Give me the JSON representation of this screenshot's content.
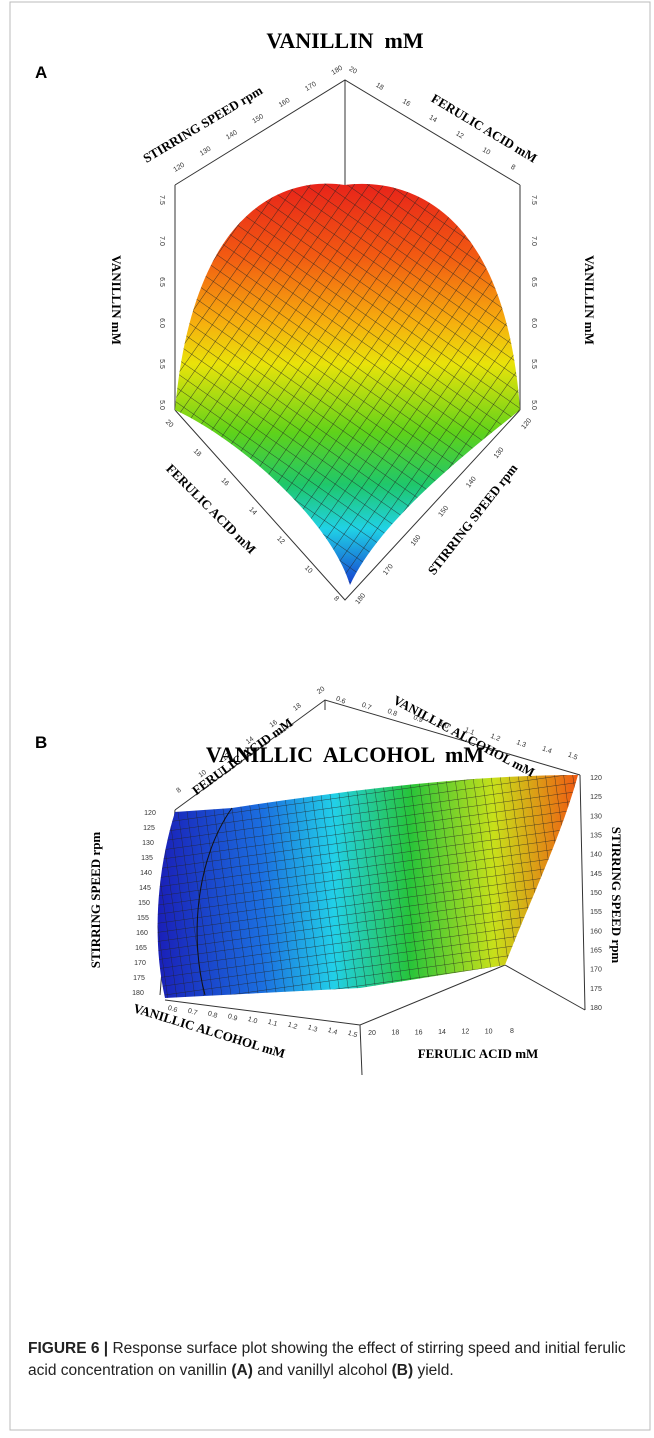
{
  "figure": {
    "panels": [
      {
        "letter": "A",
        "title": "VANILLIN  mM",
        "axes": [
          {
            "label": "STIRRING SPEED rpm",
            "ticks": [
              "120",
              "130",
              "140",
              "150",
              "160",
              "170",
              "180"
            ]
          },
          {
            "label": "FERULIC ACID mM",
            "ticks": [
              "20",
              "18",
              "16",
              "14",
              "12",
              "10",
              "8"
            ]
          },
          {
            "label": "VANILLIN mM",
            "ticks": [
              "5.0",
              "5.5",
              "6.0",
              "6.5",
              "7.0",
              "7.5"
            ]
          },
          {
            "label": "VANILLIN mM",
            "ticks": [
              "5.0",
              "5.5",
              "6.0",
              "6.5",
              "7.0",
              "7.5"
            ]
          },
          {
            "label": "FERULIC ACID mM",
            "ticks": [
              "20",
              "18",
              "16",
              "14",
              "12",
              "10",
              "8"
            ]
          },
          {
            "label": "STIRRING SPEED rpm",
            "ticks": [
              "180",
              "170",
              "160",
              "150",
              "140",
              "130",
              "120"
            ]
          }
        ]
      },
      {
        "letter": "B",
        "title": "VANILLIC  ALCOHOL  mM",
        "axes": [
          {
            "label": "FERULIC ACID mM",
            "ticks": [
              "8",
              "10",
              "12",
              "14",
              "16",
              "18",
              "20"
            ]
          },
          {
            "label": "VANILLIC ALCOHOL mM",
            "ticks": [
              "0.6",
              "0.7",
              "0.8",
              "0.9",
              "1.0",
              "1.1",
              "1.2",
              "1.3",
              "1.4",
              "1.5"
            ]
          },
          {
            "label": "STIRRING SPEED rpm",
            "ticks": [
              "120",
              "125",
              "130",
              "135",
              "140",
              "145",
              "150",
              "155",
              "160",
              "165",
              "170",
              "175",
              "180"
            ]
          },
          {
            "label": "STIRRING SPEED rpm",
            "ticks": [
              "120",
              "125",
              "130",
              "135",
              "140",
              "145",
              "150",
              "155",
              "160",
              "165",
              "170",
              "175",
              "180"
            ]
          },
          {
            "label": "VANILLIC ALCOHOL mM",
            "ticks": [
              "0.6",
              "0.7",
              "0.8",
              "0.9",
              "1.0",
              "1.1",
              "1.2",
              "1.3",
              "1.4",
              "1.5"
            ]
          },
          {
            "label": "FERULIC ACID mM",
            "ticks": [
              "20",
              "18",
              "16",
              "14",
              "12",
              "10",
              "8"
            ]
          }
        ]
      }
    ],
    "caption": {
      "label": "FIGURE 6 |",
      "text": " Response surface plot showing the effect of stirring speed and initial ferulic acid concentration on vanillin ",
      "a": "(A)",
      "mid": " and vanillyl alcohol ",
      "b": "(B)",
      "end": " yield."
    }
  }
}
